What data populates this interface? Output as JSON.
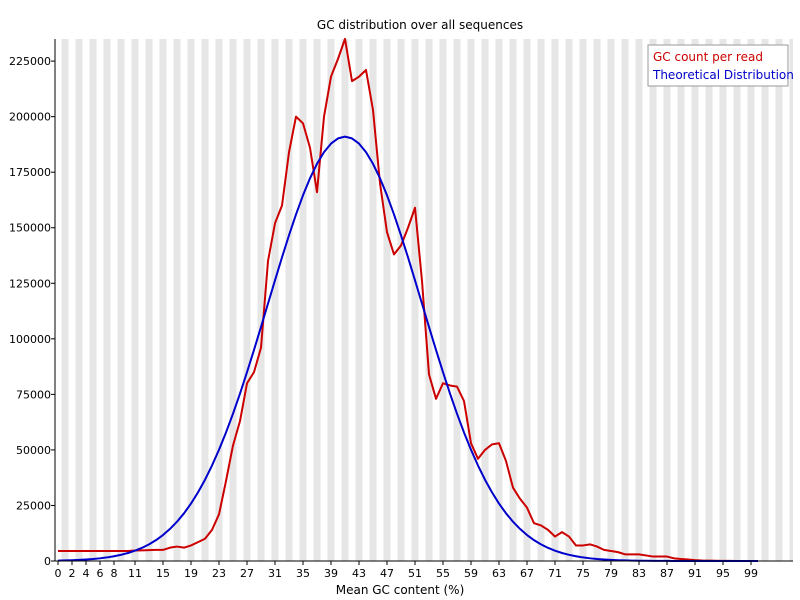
{
  "chart_data": {
    "type": "line",
    "title": "GC distribution over all sequences",
    "xlabel": "Mean GC content (%)",
    "ylabel": "",
    "xlim": [
      0,
      100
    ],
    "ylim": [
      0,
      235000
    ],
    "x_tick_labels": [
      "0",
      "2",
      "4",
      "6",
      "8",
      "11",
      "15",
      "19",
      "23",
      "27",
      "31",
      "35",
      "39",
      "43",
      "47",
      "51",
      "55",
      "59",
      "63",
      "67",
      "71",
      "75",
      "79",
      "83",
      "87",
      "91",
      "95",
      "99"
    ],
    "y_tick_labels": [
      "0",
      "25000",
      "50000",
      "75000",
      "100000",
      "125000",
      "150000",
      "175000",
      "200000",
      "225000"
    ],
    "y_ticks": [
      0,
      25000,
      50000,
      75000,
      100000,
      125000,
      150000,
      175000,
      200000,
      225000
    ],
    "grid": "alternating vertical bands",
    "legend_position": "top-right",
    "series": [
      {
        "name": "GC count per read",
        "color": "#cc0000",
        "x": [
          0,
          1,
          2,
          3,
          4,
          5,
          6,
          7,
          8,
          9,
          10,
          11,
          12,
          13,
          14,
          15,
          16,
          17,
          18,
          19,
          20,
          21,
          22,
          23,
          24,
          25,
          26,
          27,
          28,
          29,
          30,
          31,
          32,
          33,
          34,
          35,
          36,
          37,
          38,
          39,
          40,
          41,
          42,
          43,
          44,
          45,
          46,
          47,
          48,
          49,
          50,
          51,
          52,
          53,
          54,
          55,
          56,
          57,
          58,
          59,
          60,
          61,
          62,
          63,
          64,
          65,
          66,
          67,
          68,
          69,
          70,
          71,
          72,
          73,
          74,
          75,
          76,
          77,
          78,
          79,
          80,
          81,
          82,
          83,
          84,
          85,
          86,
          87,
          88,
          89,
          90,
          91,
          92,
          93,
          94,
          95,
          96,
          97,
          98,
          99,
          100
        ],
        "y": [
          4500,
          4500,
          4500,
          4500,
          4500,
          4500,
          4500,
          4500,
          4500,
          4500,
          4500,
          4700,
          4800,
          4900,
          5000,
          5000,
          6000,
          6500,
          6000,
          7000,
          8500,
          10000,
          14000,
          21000,
          36000,
          52000,
          63000,
          80000,
          85000,
          96000,
          135000,
          152000,
          160000,
          184000,
          200000,
          197000,
          186000,
          166000,
          200000,
          218000,
          226000,
          235000,
          216000,
          218000,
          221000,
          203000,
          170000,
          148000,
          138000,
          142000,
          150000,
          159000,
          126000,
          84000,
          73000,
          80000,
          79000,
          78500,
          72000,
          53000,
          46000,
          50000,
          52500,
          53000,
          45000,
          33000,
          28000,
          24000,
          17000,
          16000,
          14000,
          11000,
          13000,
          11000,
          7000,
          7000,
          7500,
          6500,
          5000,
          4500,
          4000,
          3000,
          3000,
          3000,
          2500,
          2000,
          2000,
          2000,
          1200,
          900,
          700,
          400,
          200,
          150,
          100,
          50,
          30,
          20,
          10,
          5,
          0
        ]
      },
      {
        "name": "Theoretical Distribution",
        "color": "#0000cc",
        "mean": 41,
        "sd": 11,
        "peak": 191000
      }
    ]
  }
}
